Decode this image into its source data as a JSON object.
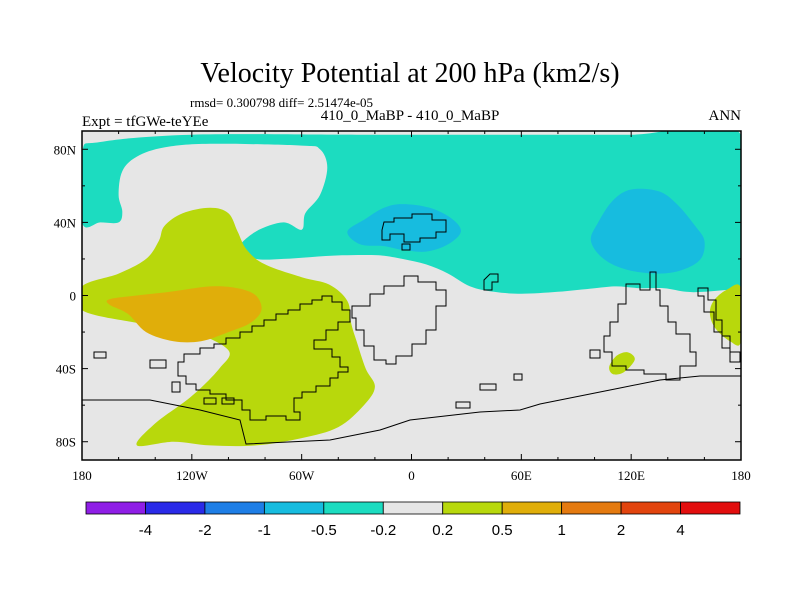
{
  "chart_data": {
    "type": "contour-map",
    "title": "Velocity Potential at 200 hPa (km2/s)",
    "stats_line": "rmsd= 0.300798 diff= 2.51474e-05",
    "left_subtitle": "Expt = tfGWe-teYEe",
    "center_subtitle": "410_0_MaBP - 410_0_MaBP",
    "right_subtitle": "ANN",
    "xlim": [
      -180,
      180
    ],
    "ylim": [
      -90,
      90
    ],
    "x_ticks": [
      {
        "value": -180,
        "label": "180"
      },
      {
        "value": -120,
        "label": "120W"
      },
      {
        "value": -60,
        "label": "60W"
      },
      {
        "value": 0,
        "label": "0"
      },
      {
        "value": 60,
        "label": "60E"
      },
      {
        "value": 120,
        "label": "120E"
      },
      {
        "value": 180,
        "label": "180"
      }
    ],
    "y_ticks": [
      {
        "value": 80,
        "label": "80N"
      },
      {
        "value": 40,
        "label": "40N"
      },
      {
        "value": 0,
        "label": "0"
      },
      {
        "value": -40,
        "label": "40S"
      },
      {
        "value": -80,
        "label": "80S"
      }
    ],
    "levels": [
      -4,
      -2,
      -1,
      -0.5,
      -0.2,
      0.2,
      0.5,
      1,
      2,
      4
    ],
    "level_labels": [
      "-4",
      "-2",
      "-1",
      "-0.5",
      "-0.2",
      "0.2",
      "0.5",
      "1",
      "2",
      "4"
    ],
    "colors": [
      "#8f1ee6",
      "#2a2ae8",
      "#1e7ee6",
      "#17bcdf",
      "#1cdcc0",
      "#e6e6e6",
      "#b8d80c",
      "#e0ae0a",
      "#e47a10",
      "#e2440e",
      "#e20e0e"
    ],
    "background_color": "#e6e6e6",
    "regions": [
      {
        "name": "north-neg-band",
        "level": "-0.5 to -0.2",
        "color": "#1cdcc0",
        "lonlat": [
          [
            -170,
            84
          ],
          [
            -120,
            88
          ],
          [
            -30,
            88
          ],
          [
            40,
            88
          ],
          [
            120,
            88
          ],
          [
            180,
            88
          ],
          [
            180,
            3
          ],
          [
            172,
            3
          ],
          [
            160,
            2
          ],
          [
            150,
            2
          ],
          [
            138,
            4
          ],
          [
            125,
            4
          ],
          [
            112,
            5
          ],
          [
            100,
            4
          ],
          [
            80,
            2
          ],
          [
            60,
            1
          ],
          [
            45,
            2
          ],
          [
            32,
            5
          ],
          [
            20,
            12
          ],
          [
            8,
            17
          ],
          [
            -5,
            20
          ],
          [
            -18,
            22
          ],
          [
            -38,
            22
          ],
          [
            -55,
            21
          ],
          [
            -70,
            20
          ],
          [
            -85,
            20
          ],
          [
            -95,
            25
          ],
          [
            -85,
            35
          ],
          [
            -70,
            40
          ],
          [
            -60,
            36
          ],
          [
            -58,
            45
          ],
          [
            -50,
            55
          ],
          [
            -46,
            70
          ],
          [
            -50,
            80
          ],
          [
            -60,
            82
          ],
          [
            -110,
            83
          ],
          [
            -135,
            81
          ],
          [
            -150,
            76
          ],
          [
            -158,
            68
          ],
          [
            -160,
            55
          ],
          [
            -158,
            46
          ],
          [
            -160,
            40
          ],
          [
            -170,
            40
          ],
          [
            -180,
            40
          ],
          [
            -180,
            78
          ]
        ]
      },
      {
        "name": "north-island",
        "level": "-0.5 to -0.2",
        "color": "#1cdcc0",
        "lonlat": [
          [
            35,
            47
          ],
          [
            45,
            46
          ],
          [
            55,
            47
          ],
          [
            65,
            48
          ],
          [
            66,
            52
          ],
          [
            58,
            57
          ],
          [
            45,
            55
          ],
          [
            36,
            51
          ]
        ]
      },
      {
        "name": "asia-minimum",
        "level": "-1 to -0.5",
        "color": "#17bcdf",
        "lonlat": [
          [
            -35,
            35
          ],
          [
            -25,
            42
          ],
          [
            -15,
            48
          ],
          [
            -5,
            50
          ],
          [
            10,
            48
          ],
          [
            22,
            42
          ],
          [
            27,
            35
          ],
          [
            20,
            28
          ],
          [
            8,
            24
          ],
          [
            -5,
            25
          ],
          [
            -15,
            27
          ],
          [
            -28,
            28
          ]
        ]
      },
      {
        "name": "pacific-minimum",
        "level": "-1 to -0.5",
        "color": "#17bcdf",
        "lonlat": [
          [
            102,
            40
          ],
          [
            110,
            52
          ],
          [
            120,
            58
          ],
          [
            135,
            57
          ],
          [
            145,
            50
          ],
          [
            155,
            38
          ],
          [
            160,
            30
          ],
          [
            158,
            20
          ],
          [
            148,
            14
          ],
          [
            135,
            12
          ],
          [
            118,
            14
          ],
          [
            105,
            20
          ],
          [
            98,
            30
          ]
        ]
      },
      {
        "name": "pacific-pos-band",
        "level": "0.2 to 0.5",
        "color": "#b8d80c",
        "lonlat": [
          [
            -180,
            -8
          ],
          [
            -180,
            5
          ],
          [
            -160,
            12
          ],
          [
            -145,
            20
          ],
          [
            -138,
            30
          ],
          [
            -135,
            38
          ],
          [
            -125,
            45
          ],
          [
            -110,
            48
          ],
          [
            -100,
            45
          ],
          [
            -95,
            35
          ],
          [
            -90,
            25
          ],
          [
            -80,
            17
          ],
          [
            -60,
            10
          ],
          [
            -45,
            6
          ],
          [
            -35,
            -3
          ],
          [
            -33,
            -15
          ],
          [
            -30,
            -25
          ],
          [
            -25,
            -40
          ],
          [
            -20,
            -50
          ],
          [
            -26,
            -60
          ],
          [
            -40,
            -72
          ],
          [
            -60,
            -78
          ],
          [
            -85,
            -82
          ],
          [
            -110,
            -82
          ],
          [
            -130,
            -80
          ],
          [
            -150,
            -82
          ],
          [
            -140,
            -70
          ],
          [
            -120,
            -55
          ],
          [
            -105,
            -40
          ],
          [
            -100,
            -30
          ],
          [
            -120,
            -20
          ],
          [
            -150,
            -15
          ]
        ]
      },
      {
        "name": "pacific-maximum",
        "level": "0.5 to 1",
        "color": "#e0ae0a",
        "lonlat": [
          [
            -165,
            -2
          ],
          [
            -150,
            0
          ],
          [
            -132,
            2
          ],
          [
            -110,
            5
          ],
          [
            -95,
            4
          ],
          [
            -85,
            0
          ],
          [
            -82,
            -8
          ],
          [
            -88,
            -15
          ],
          [
            -100,
            -20
          ],
          [
            -115,
            -25
          ],
          [
            -130,
            -25
          ],
          [
            -145,
            -20
          ],
          [
            -155,
            -10
          ],
          [
            -165,
            -5
          ]
        ]
      },
      {
        "name": "dateline-pos-blob",
        "level": "0.2 to 0.5",
        "color": "#b8d80c",
        "lonlat": [
          [
            165,
            -3
          ],
          [
            172,
            3
          ],
          [
            180,
            4
          ],
          [
            180,
            -25
          ],
          [
            174,
            -25
          ],
          [
            166,
            -18
          ],
          [
            163,
            -10
          ]
        ]
      },
      {
        "name": "small-pos-blob",
        "level": "0.2 to 0.5",
        "color": "#b8d80c",
        "lonlat": [
          [
            108,
            -39
          ],
          [
            112,
            -33
          ],
          [
            118,
            -31
          ],
          [
            122,
            -35
          ],
          [
            116,
            -42
          ],
          [
            110,
            -43
          ]
        ]
      }
    ]
  }
}
